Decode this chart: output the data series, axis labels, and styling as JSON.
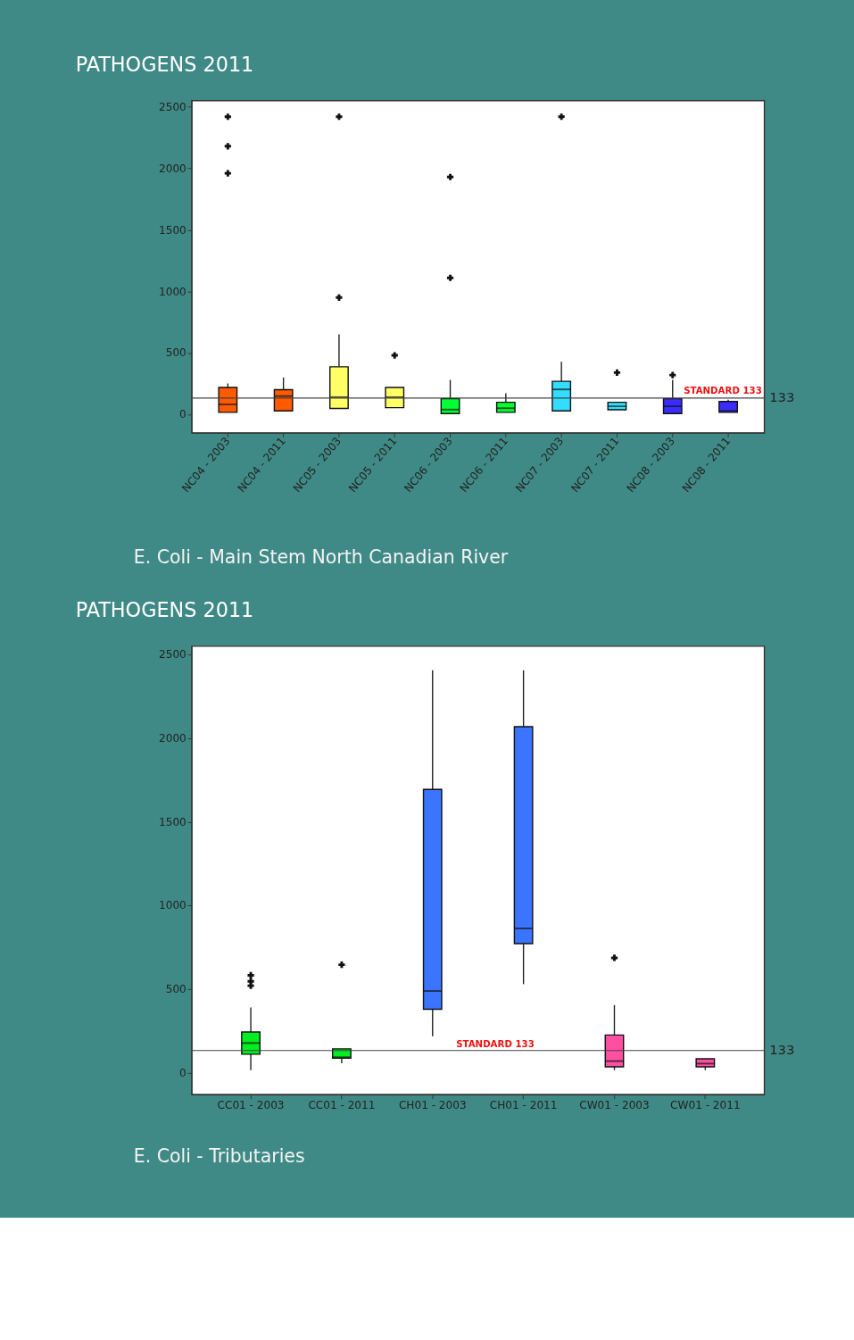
{
  "chart_data": [
    {
      "type": "box",
      "title": "PATHOGENS 2011",
      "categories": [
        "NC04 - 2003",
        "NC04 - 2011",
        "NC05 - 2003",
        "NC05 - 2011",
        "NC06 - 2003",
        "NC06 - 2011",
        "NC07 - 2003",
        "NC07 - 2011",
        "NC08 - 2003",
        "NC08 - 2011"
      ],
      "boxes": [
        {
          "low": 17,
          "q1": 17,
          "median": 81,
          "q3": 219,
          "high": 252,
          "outliers": [
            2420,
            2180,
            1960
          ]
        },
        {
          "low": 28,
          "q1": 28,
          "median": 149,
          "q3": 201,
          "high": 300
        },
        {
          "low": 48,
          "q1": 48,
          "median": 140,
          "q3": 387,
          "high": 650,
          "outliers": [
            2420,
            950
          ]
        },
        {
          "low": 55,
          "q1": 55,
          "median": 140,
          "q3": 219,
          "high": 219,
          "outliers": [
            480
          ]
        },
        {
          "low": 7,
          "q1": 7,
          "median": 39,
          "q3": 127,
          "high": 280,
          "outliers": [
            1930,
            1110
          ]
        },
        {
          "low": 17,
          "q1": 17,
          "median": 50,
          "q3": 98,
          "high": 171
        },
        {
          "low": 28,
          "q1": 28,
          "median": 203,
          "q3": 269,
          "high": 427,
          "outliers": [
            2420
          ]
        },
        {
          "low": 37,
          "q1": 37,
          "median": 66,
          "q3": 98,
          "high": 98,
          "outliers": [
            340
          ]
        },
        {
          "low": 7,
          "q1": 7,
          "median": 66,
          "q3": 127,
          "high": 280,
          "outliers": [
            320
          ]
        },
        {
          "low": 17,
          "q1": 17,
          "median": 28,
          "q3": 105,
          "high": 120
        }
      ],
      "colors": [
        "#ff5a00",
        "#ff5a00",
        "#ffff66",
        "#ffff66",
        "#00ff33",
        "#00ff33",
        "#33ddff",
        "#33ddff",
        "#3a2cff",
        "#3a2cff"
      ],
      "ylim": [
        -150,
        2550
      ],
      "yticks": [
        0,
        500,
        1000,
        1500,
        2000,
        2500
      ],
      "grid": false,
      "legend": false,
      "marker": "cross",
      "ref_lines": [
        {
          "axis": "y",
          "value": 133,
          "label": "STANDARD 133"
        }
      ],
      "annotations": [
        "133",
        "E. Coli - Main Stem North Canadian River"
      ]
    },
    {
      "type": "box",
      "title": "PATHOGENS 2011",
      "categories": [
        "CC01 - 2003",
        "CC01 - 2011",
        "CH01 - 2003",
        "CH01 - 2011",
        "CW01 - 2003",
        "CW01 - 2011"
      ],
      "boxes": [
        {
          "low": 16,
          "q1": 111,
          "median": 178,
          "q3": 244,
          "high": 391,
          "outliers": [
            583,
            547,
            521
          ]
        },
        {
          "low": 57,
          "q1": 87,
          "median": 93,
          "q3": 143,
          "high": 143,
          "outliers": [
            646
          ]
        },
        {
          "low": 218,
          "q1": 380,
          "median": 489,
          "q3": 1694,
          "high": 2406
        },
        {
          "low": 530,
          "q1": 772,
          "median": 863,
          "q3": 2069,
          "high": 2406
        },
        {
          "low": 16,
          "q1": 36,
          "median": 70,
          "q3": 226,
          "high": 405,
          "outliers": [
            687
          ]
        },
        {
          "low": 16,
          "q1": 36,
          "median": 55,
          "q3": 84,
          "high": 84
        }
      ],
      "colors": [
        "#00ee22",
        "#00ee22",
        "#3a74ff",
        "#3a74ff",
        "#ff4fa3",
        "#ff4fa3"
      ],
      "ylim": [
        -130,
        2550
      ],
      "yticks": [
        0,
        500,
        1000,
        1500,
        2000,
        2500
      ],
      "grid": false,
      "legend": false,
      "marker": "cross",
      "ref_lines": [
        {
          "axis": "y",
          "value": 133,
          "label": "STANDARD 133"
        }
      ],
      "annotations": [
        "133",
        "E. Coli - Tributaries"
      ]
    }
  ]
}
